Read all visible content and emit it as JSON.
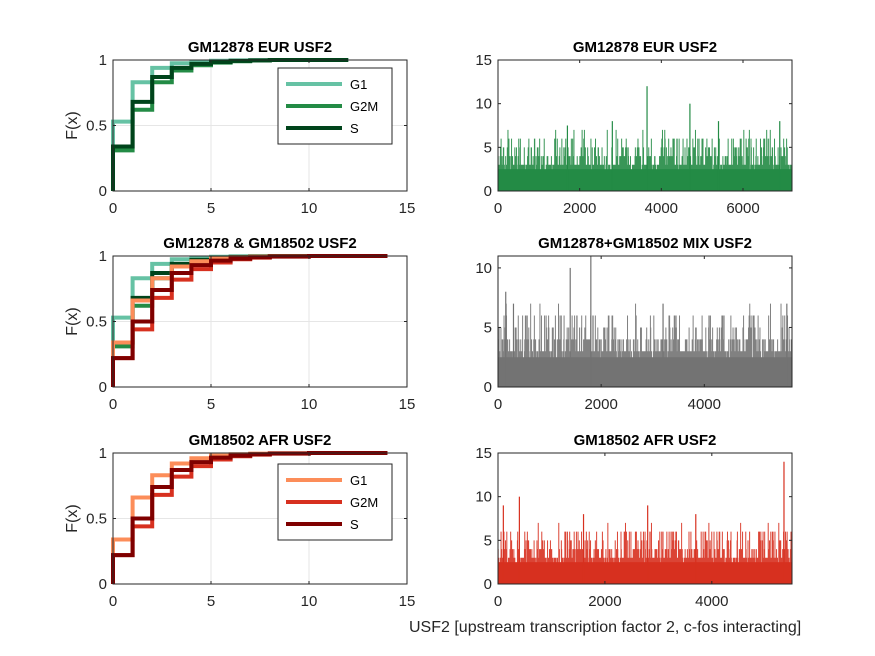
{
  "figure": {
    "xlabel": "USF2 [upstream transcription factor 2, c-fos interacting]"
  },
  "colors": {
    "eur": [
      "#66c2a4",
      "#238b45",
      "#00441b"
    ],
    "afr": [
      "#fc8d59",
      "#d7301f",
      "#7f0000"
    ],
    "mix_bar": "#737373",
    "eur_bar": "#238b45",
    "afr_bar": "#d7301f"
  },
  "chart_data": [
    {
      "type": "line",
      "subtype": "empirical-cdf-step",
      "title": "GM12878 EUR USF2",
      "ylabel": "F(x)",
      "xlim": [
        0,
        15
      ],
      "ylim": [
        0,
        1
      ],
      "xticks": [
        "0",
        "5",
        "10",
        "15"
      ],
      "yticks": [
        "0",
        "0.5",
        "1"
      ],
      "grid": true,
      "legend": {
        "position": "top-right",
        "entries": [
          "G1",
          "G2M",
          "S"
        ]
      },
      "series": [
        {
          "name": "G1",
          "color": "#66c2a4",
          "x": [
            0,
            1,
            2,
            3,
            4,
            5,
            6,
            7,
            8,
            12
          ],
          "y": [
            0.53,
            0.83,
            0.94,
            0.975,
            0.988,
            0.994,
            0.997,
            0.999,
            1,
            1
          ]
        },
        {
          "name": "G2M",
          "color": "#238b45",
          "x": [
            0,
            1,
            2,
            3,
            4,
            5,
            6,
            7,
            8,
            12
          ],
          "y": [
            0.31,
            0.62,
            0.83,
            0.92,
            0.96,
            0.98,
            0.99,
            0.996,
            1,
            1
          ]
        },
        {
          "name": "S",
          "color": "#00441b",
          "x": [
            0,
            1,
            2,
            3,
            4,
            5,
            6,
            7,
            8,
            12
          ],
          "y": [
            0.34,
            0.68,
            0.87,
            0.94,
            0.97,
            0.985,
            0.993,
            0.997,
            1,
            1
          ]
        }
      ]
    },
    {
      "type": "bar",
      "title": "GM12878 EUR USF2",
      "xlim": [
        0,
        7200
      ],
      "ylim": [
        0,
        15
      ],
      "xticks": [
        "0",
        "2000",
        "4000",
        "6000"
      ],
      "yticks": [
        "0",
        "5",
        "10",
        "15"
      ],
      "color": "#238b45",
      "n_values": 7200,
      "values_summary": "mostly 0-5, peaks up to 12",
      "spikes": [
        [
          3650,
          12
        ],
        [
          4700,
          10
        ],
        [
          2800,
          8
        ],
        [
          5400,
          8
        ],
        [
          1700,
          7.5
        ],
        [
          6900,
          8
        ]
      ]
    },
    {
      "type": "line",
      "subtype": "empirical-cdf-step",
      "title": "GM12878 & GM18502 USF2",
      "ylabel": "F(x)",
      "xlim": [
        0,
        15
      ],
      "ylim": [
        0,
        1
      ],
      "xticks": [
        "0",
        "5",
        "10",
        "15"
      ],
      "yticks": [
        "0",
        "0.5",
        "1"
      ],
      "grid": true,
      "series": [
        {
          "color": "#66c2a4",
          "x": [
            0,
            1,
            2,
            3,
            4,
            5,
            6,
            7,
            8,
            12
          ],
          "y": [
            0.53,
            0.83,
            0.94,
            0.975,
            0.988,
            0.994,
            0.997,
            0.999,
            1,
            1
          ]
        },
        {
          "color": "#238b45",
          "x": [
            0,
            1,
            2,
            3,
            4,
            5,
            6,
            7,
            8,
            12
          ],
          "y": [
            0.31,
            0.62,
            0.83,
            0.92,
            0.96,
            0.98,
            0.99,
            0.996,
            1,
            1
          ]
        },
        {
          "color": "#00441b",
          "x": [
            0,
            1,
            2,
            3,
            4,
            5,
            6,
            7,
            8,
            12
          ],
          "y": [
            0.34,
            0.68,
            0.87,
            0.94,
            0.97,
            0.985,
            0.993,
            0.997,
            1,
            1
          ]
        },
        {
          "color": "#fc8d59",
          "x": [
            0,
            1,
            2,
            3,
            4,
            5,
            6,
            7,
            8,
            10,
            14
          ],
          "y": [
            0.34,
            0.66,
            0.83,
            0.92,
            0.96,
            0.98,
            0.99,
            0.995,
            0.998,
            1,
            1
          ]
        },
        {
          "color": "#d7301f",
          "x": [
            0,
            1,
            2,
            3,
            4,
            5,
            6,
            7,
            8,
            10,
            14
          ],
          "y": [
            0.22,
            0.44,
            0.68,
            0.82,
            0.9,
            0.95,
            0.975,
            0.988,
            0.995,
            1,
            1
          ]
        },
        {
          "color": "#7f0000",
          "x": [
            0,
            1,
            2,
            3,
            4,
            5,
            6,
            7,
            8,
            10,
            14
          ],
          "y": [
            0.22,
            0.5,
            0.74,
            0.87,
            0.93,
            0.965,
            0.98,
            0.99,
            0.996,
            1,
            1
          ]
        }
      ]
    },
    {
      "type": "bar",
      "title": "GM12878+GM18502 MIX USF2",
      "xlim": [
        0,
        5700
      ],
      "ylim": [
        0,
        11
      ],
      "xticks": [
        "0",
        "2000",
        "4000"
      ],
      "yticks": [
        "0",
        "5",
        "10"
      ],
      "color": "#737373",
      "n_values": 5700,
      "values_summary": "mostly 0-5, peaks up to 11",
      "spikes": [
        [
          1800,
          11
        ],
        [
          1400,
          10
        ],
        [
          150,
          8
        ],
        [
          300,
          7
        ],
        [
          3200,
          7
        ],
        [
          5600,
          7
        ]
      ]
    },
    {
      "type": "line",
      "subtype": "empirical-cdf-step",
      "title": "GM18502 AFR USF2",
      "ylabel": "F(x)",
      "xlim": [
        0,
        15
      ],
      "ylim": [
        0,
        1
      ],
      "xticks": [
        "0",
        "5",
        "10",
        "15"
      ],
      "yticks": [
        "0",
        "0.5",
        "1"
      ],
      "grid": true,
      "legend": {
        "position": "top-right",
        "entries": [
          "G1",
          "G2M",
          "S"
        ]
      },
      "series": [
        {
          "name": "G1",
          "color": "#fc8d59",
          "x": [
            0,
            1,
            2,
            3,
            4,
            5,
            6,
            7,
            8,
            10,
            14
          ],
          "y": [
            0.34,
            0.66,
            0.83,
            0.92,
            0.96,
            0.98,
            0.99,
            0.995,
            0.998,
            1,
            1
          ]
        },
        {
          "name": "G2M",
          "color": "#d7301f",
          "x": [
            0,
            1,
            2,
            3,
            4,
            5,
            6,
            7,
            8,
            10,
            14
          ],
          "y": [
            0.22,
            0.44,
            0.68,
            0.82,
            0.9,
            0.95,
            0.975,
            0.988,
            0.995,
            1,
            1
          ]
        },
        {
          "name": "S",
          "color": "#7f0000",
          "x": [
            0,
            1,
            2,
            3,
            4,
            5,
            6,
            7,
            8,
            10,
            14
          ],
          "y": [
            0.22,
            0.5,
            0.74,
            0.87,
            0.93,
            0.965,
            0.98,
            0.99,
            0.996,
            1,
            1
          ]
        }
      ]
    },
    {
      "type": "bar",
      "title": "GM18502 AFR USF2",
      "xlim": [
        0,
        5500
      ],
      "ylim": [
        0,
        15
      ],
      "xticks": [
        "0",
        "2000",
        "4000"
      ],
      "yticks": [
        "0",
        "5",
        "10",
        "15"
      ],
      "color": "#d7301f",
      "n_values": 5500,
      "values_summary": "mostly 0-6, peaks up to 14",
      "spikes": [
        [
          5350,
          14
        ],
        [
          400,
          10
        ],
        [
          2800,
          9
        ],
        [
          1600,
          8
        ],
        [
          3700,
          8
        ],
        [
          100,
          9
        ]
      ]
    }
  ]
}
